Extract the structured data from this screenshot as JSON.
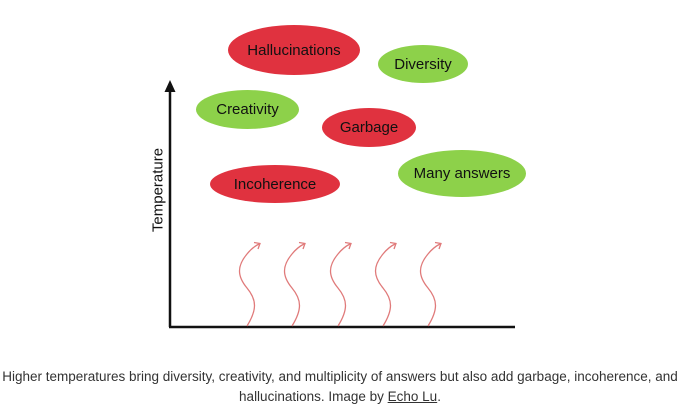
{
  "diagram": {
    "y_axis_label": "Temperature",
    "colors": {
      "bad": "#e0323f",
      "good": "#8dd14a",
      "axis": "#111111",
      "wave": "#e07a7a"
    },
    "ovals": [
      {
        "id": "hallucinations",
        "label": "Hallucinations",
        "kind": "bad"
      },
      {
        "id": "diversity",
        "label": "Diversity",
        "kind": "good"
      },
      {
        "id": "creativity",
        "label": "Creativity",
        "kind": "good"
      },
      {
        "id": "garbage",
        "label": "Garbage",
        "kind": "bad"
      },
      {
        "id": "many-answers",
        "label": "Many answers",
        "kind": "good"
      },
      {
        "id": "incoherence",
        "label": "Incoherence",
        "kind": "bad"
      }
    ]
  },
  "caption": {
    "text_before": "Higher temperatures bring diversity, creativity, and multiplicity of answers but also add garbage, incoherence, and hallucinations. Image by ",
    "link": "Echo Lu",
    "text_after": "."
  }
}
